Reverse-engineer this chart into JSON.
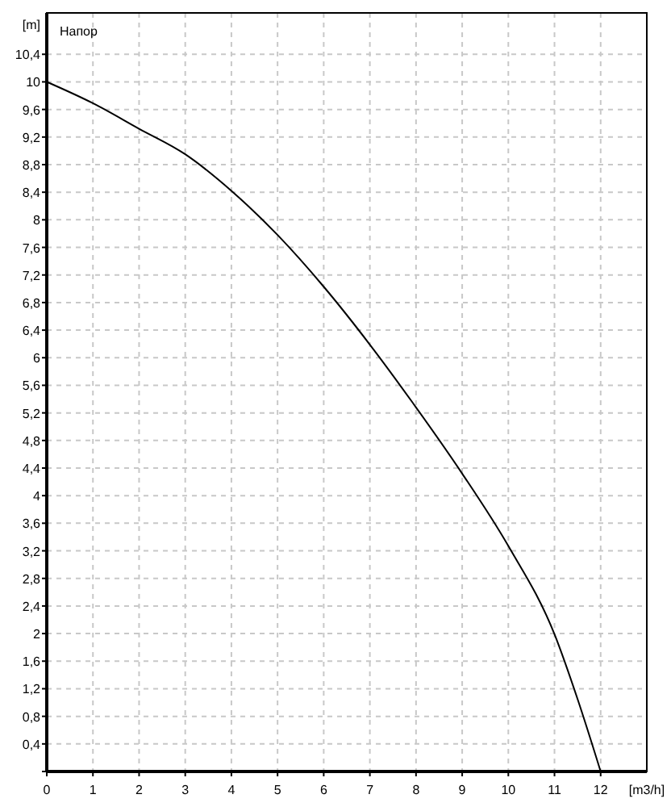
{
  "chart_data": {
    "type": "line",
    "xlabel": "[m3/h]",
    "ylabel": "[m]",
    "annotations": [
      "Напор"
    ],
    "x": [
      0,
      1,
      2,
      3,
      4,
      5,
      6,
      7,
      8,
      9,
      10,
      11,
      11.5,
      12
    ],
    "series": [
      {
        "color": "#000000",
        "values": [
          10,
          9.69,
          9.32,
          8.95,
          8.42,
          7.78,
          7.03,
          6.19,
          5.28,
          4.32,
          3.27,
          1.99,
          1.05,
          0
        ]
      }
    ],
    "xlim": [
      0,
      13
    ],
    "ylim": [
      0,
      11
    ],
    "xticks": [
      0,
      1,
      2,
      3,
      4,
      5,
      6,
      7,
      8,
      9,
      10,
      11,
      12
    ],
    "yticks": [
      {
        "value": 0,
        "label": null
      },
      {
        "value": 0.4,
        "label": "0,4"
      },
      {
        "value": 0.8,
        "label": "0,8"
      },
      {
        "value": 1.2,
        "label": "1,2"
      },
      {
        "value": 1.6,
        "label": "1,6"
      },
      {
        "value": 2,
        "label": "2"
      },
      {
        "value": 2.4,
        "label": "2,4"
      },
      {
        "value": 2.8,
        "label": "2,8"
      },
      {
        "value": 3.2,
        "label": "3,2"
      },
      {
        "value": 3.6,
        "label": "3,6"
      },
      {
        "value": 4,
        "label": "4"
      },
      {
        "value": 4.4,
        "label": "4,4"
      },
      {
        "value": 4.8,
        "label": "4,8"
      },
      {
        "value": 5.2,
        "label": "5,2"
      },
      {
        "value": 5.6,
        "label": "5,6"
      },
      {
        "value": 6,
        "label": "6"
      },
      {
        "value": 6.4,
        "label": "6,4"
      },
      {
        "value": 6.8,
        "label": "6,8"
      },
      {
        "value": 7.2,
        "label": "7,2"
      },
      {
        "value": 7.6,
        "label": "7,6"
      },
      {
        "value": 8,
        "label": "8"
      },
      {
        "value": 8.4,
        "label": "8,4"
      },
      {
        "value": 8.8,
        "label": "8,8"
      },
      {
        "value": 9.2,
        "label": "9,2"
      },
      {
        "value": 9.6,
        "label": "9,6"
      },
      {
        "value": 10,
        "label": "10"
      },
      {
        "value": 10.4,
        "label": "10,4"
      }
    ],
    "grid": true,
    "marker": "none",
    "line_style": "solid"
  }
}
